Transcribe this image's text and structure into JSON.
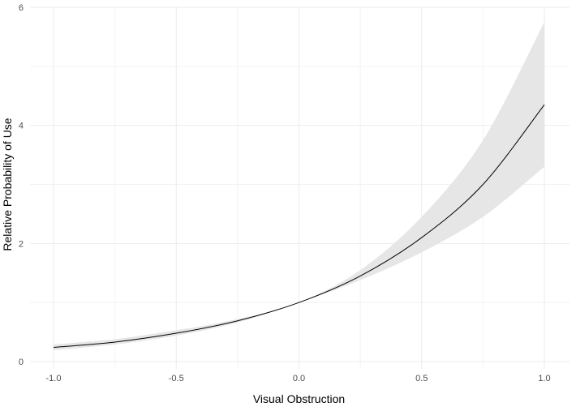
{
  "chart_data": {
    "type": "line",
    "title": "",
    "xlabel": "Visual Obstruction",
    "ylabel": "Relative Probability of Use",
    "xlim": [
      -1.0,
      1.0
    ],
    "ylim": [
      0,
      6
    ],
    "x_ticks": [
      "-1.0",
      "-0.5",
      "0.0",
      "0.5",
      "1.0"
    ],
    "x_tick_values": [
      -1.0,
      -0.5,
      0.0,
      0.5,
      1.0
    ],
    "y_ticks": [
      "0",
      "2",
      "4",
      "6"
    ],
    "y_tick_values": [
      0,
      2,
      4,
      6
    ],
    "grid": true,
    "legend": "none",
    "series": [
      {
        "x": [
          -1.0,
          -0.75,
          -0.5,
          -0.25,
          0.0,
          0.25,
          0.5,
          0.75,
          1.0
        ],
        "y": [
          0.24,
          0.33,
          0.48,
          0.69,
          1.0,
          1.45,
          2.1,
          3.0,
          4.35
        ],
        "lower": [
          0.19,
          0.29,
          0.44,
          0.66,
          1.0,
          1.38,
          1.85,
          2.45,
          3.3
        ],
        "upper": [
          0.29,
          0.38,
          0.53,
          0.72,
          1.0,
          1.55,
          2.45,
          3.75,
          5.75
        ]
      }
    ],
    "colors": {
      "line": "#000000",
      "band": "#e6e6e6",
      "grid_major": "#ebebeb",
      "grid_minor": "#f2f2f2",
      "text": "#4d4d4d"
    }
  }
}
